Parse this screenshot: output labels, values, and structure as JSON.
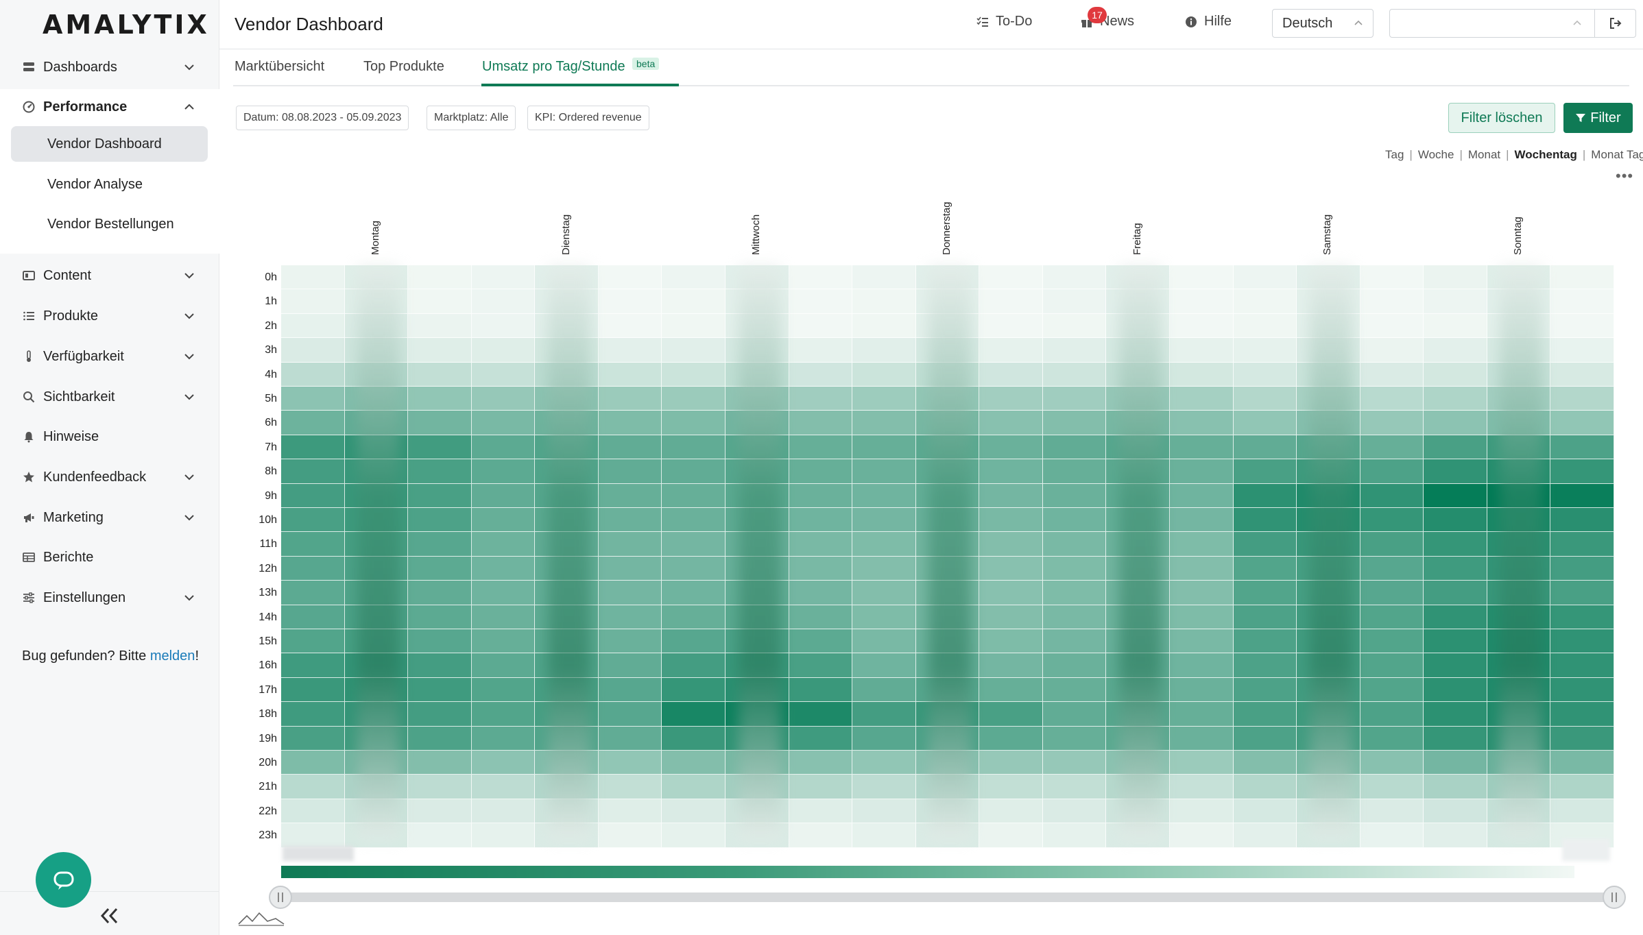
{
  "app": {
    "logo": "AMALYTIX"
  },
  "sidebar": {
    "items": [
      {
        "label": "Dashboards",
        "icon": "dashboard-icon"
      },
      {
        "label": "Performance",
        "icon": "gauge-icon"
      },
      {
        "label": "Content",
        "icon": "content-icon"
      },
      {
        "label": "Produkte",
        "icon": "list-icon"
      },
      {
        "label": "Verfügbarkeit",
        "icon": "thermometer-icon"
      },
      {
        "label": "Sichtbarkeit",
        "icon": "search-icon"
      },
      {
        "label": "Hinweise",
        "icon": "bell-icon"
      },
      {
        "label": "Kundenfeedback",
        "icon": "star-icon"
      },
      {
        "label": "Marketing",
        "icon": "megaphone-icon"
      },
      {
        "label": "Berichte",
        "icon": "table-icon"
      },
      {
        "label": "Einstellungen",
        "icon": "sliders-icon"
      }
    ],
    "performance_sub": [
      {
        "label": "Vendor Dashboard",
        "active": true
      },
      {
        "label": "Vendor Analyse",
        "active": false
      },
      {
        "label": "Vendor Bestellungen",
        "active": false
      }
    ],
    "bug_prefix": "Bug gefunden? Bitte ",
    "bug_link": "melden",
    "bug_suffix": "!"
  },
  "header": {
    "title": "Vendor Dashboard",
    "todo": "To-Do",
    "news": "News",
    "news_count": "17",
    "help": "Hilfe",
    "language": "Deutsch"
  },
  "tabs": [
    {
      "label": "Marktübersicht"
    },
    {
      "label": "Top Produkte"
    },
    {
      "label": "Umsatz pro Tag/Stunde",
      "badge": "beta",
      "active": true
    }
  ],
  "filters": {
    "chips": [
      "Datum: 08.08.2023 - 05.09.2023",
      "Marktplatz: Alle",
      "KPI: Ordered revenue"
    ],
    "clear": "Filter löschen",
    "filter": "Filter"
  },
  "granularity": {
    "options": [
      "Tag",
      "Woche",
      "Monat",
      "Wochentag",
      "Monat Tag"
    ],
    "active": "Wochentag"
  },
  "colors": {
    "accent": "#0f7a55",
    "badge": "#e0393e",
    "link": "#1a7bb9"
  },
  "chart_data": {
    "type": "heatmap",
    "days": [
      "Montag",
      "Dienstag",
      "Mittwoch",
      "Donnerstag",
      "Freitag",
      "Samstag",
      "Sonntag"
    ],
    "hours": [
      "0h",
      "1h",
      "2h",
      "3h",
      "4h",
      "5h",
      "6h",
      "7h",
      "8h",
      "9h",
      "10h",
      "11h",
      "12h",
      "13h",
      "14h",
      "15h",
      "16h",
      "17h",
      "18h",
      "19h",
      "20h",
      "21h",
      "22h",
      "23h"
    ],
    "values": [
      [
        0.03,
        0.02,
        0.02,
        0.02,
        0.02,
        0.02,
        0.03
      ],
      [
        0.03,
        0.02,
        0.01,
        0.01,
        0.02,
        0.01,
        0.02
      ],
      [
        0.05,
        0.02,
        0.01,
        0.01,
        0.01,
        0.01,
        0.01
      ],
      [
        0.1,
        0.08,
        0.07,
        0.07,
        0.07,
        0.05,
        0.06
      ],
      [
        0.22,
        0.18,
        0.16,
        0.16,
        0.15,
        0.12,
        0.13
      ],
      [
        0.42,
        0.38,
        0.36,
        0.35,
        0.34,
        0.26,
        0.28
      ],
      [
        0.55,
        0.5,
        0.48,
        0.46,
        0.46,
        0.4,
        0.42
      ],
      [
        0.75,
        0.62,
        0.6,
        0.58,
        0.6,
        0.6,
        0.7
      ],
      [
        0.72,
        0.62,
        0.6,
        0.56,
        0.58,
        0.7,
        0.8
      ],
      [
        0.72,
        0.6,
        0.58,
        0.54,
        0.56,
        0.82,
        0.98
      ],
      [
        0.7,
        0.58,
        0.56,
        0.52,
        0.54,
        0.8,
        0.85
      ],
      [
        0.66,
        0.55,
        0.52,
        0.48,
        0.5,
        0.72,
        0.78
      ],
      [
        0.64,
        0.54,
        0.52,
        0.46,
        0.48,
        0.66,
        0.74
      ],
      [
        0.62,
        0.54,
        0.54,
        0.46,
        0.48,
        0.66,
        0.72
      ],
      [
        0.64,
        0.56,
        0.58,
        0.48,
        0.5,
        0.68,
        0.8
      ],
      [
        0.66,
        0.58,
        0.64,
        0.5,
        0.52,
        0.68,
        0.82
      ],
      [
        0.74,
        0.62,
        0.72,
        0.54,
        0.56,
        0.68,
        0.82
      ],
      [
        0.76,
        0.66,
        0.78,
        0.6,
        0.58,
        0.68,
        0.82
      ],
      [
        0.74,
        0.66,
        0.9,
        0.72,
        0.6,
        0.7,
        0.82
      ],
      [
        0.7,
        0.62,
        0.76,
        0.64,
        0.58,
        0.68,
        0.78
      ],
      [
        0.48,
        0.42,
        0.46,
        0.4,
        0.38,
        0.46,
        0.52
      ],
      [
        0.24,
        0.22,
        0.28,
        0.22,
        0.2,
        0.26,
        0.3
      ],
      [
        0.12,
        0.1,
        0.1,
        0.1,
        0.1,
        0.12,
        0.14
      ],
      [
        0.06,
        0.05,
        0.05,
        0.05,
        0.05,
        0.06,
        0.07
      ]
    ]
  }
}
